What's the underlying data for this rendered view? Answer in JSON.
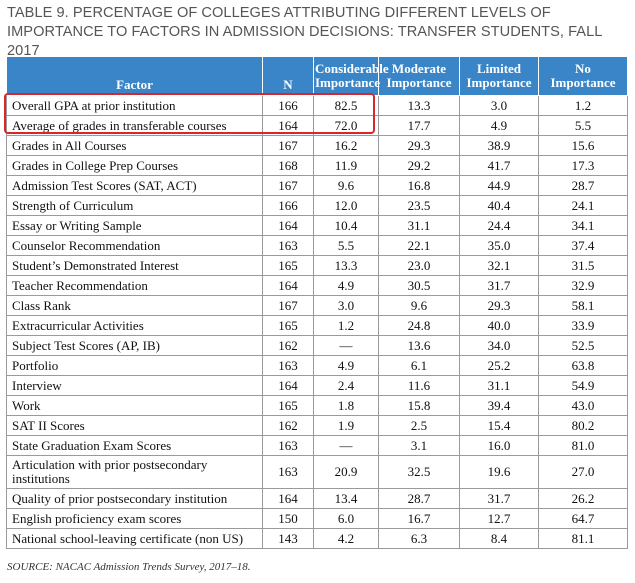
{
  "title": "TABLE 9. PERCENTAGE OF COLLEGES ATTRIBUTING DIFFERENT LEVELS OF IMPORTANCE TO FACTORS IN ADMISSION DECISIONS: TRANSFER STUDENTS, FALL 2017",
  "headers": {
    "factor": "Factor",
    "n": "N",
    "considerable_1": "Considerable",
    "considerable_2": "Importance",
    "moderate_1": "Moderate",
    "moderate_2": "Importance",
    "limited_1": "Limited",
    "limited_2": "Importance",
    "no_1": "No",
    "no_2": "Importance"
  },
  "rows": [
    {
      "factor": "Overall GPA at prior institution",
      "n": "166",
      "considerable": "82.5",
      "moderate": "13.3",
      "limited": "3.0",
      "no": "1.2"
    },
    {
      "factor": "Average of grades in transferable courses",
      "n": "164",
      "considerable": "72.0",
      "moderate": "17.7",
      "limited": "4.9",
      "no": "5.5"
    },
    {
      "factor": "Grades in All Courses",
      "n": "167",
      "considerable": "16.2",
      "moderate": "29.3",
      "limited": "38.9",
      "no": "15.6"
    },
    {
      "factor": "Grades in College Prep Courses",
      "n": "168",
      "considerable": "11.9",
      "moderate": "29.2",
      "limited": "41.7",
      "no": "17.3"
    },
    {
      "factor": "Admission Test Scores (SAT, ACT)",
      "n": "167",
      "considerable": "9.6",
      "moderate": "16.8",
      "limited": "44.9",
      "no": "28.7"
    },
    {
      "factor": "Strength of Curriculum",
      "n": "166",
      "considerable": "12.0",
      "moderate": "23.5",
      "limited": "40.4",
      "no": "24.1"
    },
    {
      "factor": "Essay or Writing Sample",
      "n": "164",
      "considerable": "10.4",
      "moderate": "31.1",
      "limited": "24.4",
      "no": "34.1"
    },
    {
      "factor": "Counselor Recommendation",
      "n": "163",
      "considerable": "5.5",
      "moderate": "22.1",
      "limited": "35.0",
      "no": "37.4"
    },
    {
      "factor": "Student’s Demonstrated Interest",
      "n": "165",
      "considerable": "13.3",
      "moderate": "23.0",
      "limited": "32.1",
      "no": "31.5"
    },
    {
      "factor": "Teacher Recommendation",
      "n": "164",
      "considerable": "4.9",
      "moderate": "30.5",
      "limited": "31.7",
      "no": "32.9"
    },
    {
      "factor": "Class Rank",
      "n": "167",
      "considerable": "3.0",
      "moderate": "9.6",
      "limited": "29.3",
      "no": "58.1"
    },
    {
      "factor": "Extracurricular Activities",
      "n": "165",
      "considerable": "1.2",
      "moderate": "24.8",
      "limited": "40.0",
      "no": "33.9"
    },
    {
      "factor": "Subject Test Scores (AP, IB)",
      "n": "162",
      "considerable": "—",
      "moderate": "13.6",
      "limited": "34.0",
      "no": "52.5"
    },
    {
      "factor": "Portfolio",
      "n": "163",
      "considerable": "4.9",
      "moderate": "6.1",
      "limited": "25.2",
      "no": "63.8"
    },
    {
      "factor": "Interview",
      "n": "164",
      "considerable": "2.4",
      "moderate": "11.6",
      "limited": "31.1",
      "no": "54.9"
    },
    {
      "factor": "Work",
      "n": "165",
      "considerable": "1.8",
      "moderate": "15.8",
      "limited": "39.4",
      "no": "43.0"
    },
    {
      "factor": "SAT II Scores",
      "n": "162",
      "considerable": "1.9",
      "moderate": "2.5",
      "limited": "15.4",
      "no": "80.2"
    },
    {
      "factor": "State Graduation Exam Scores",
      "n": "163",
      "considerable": "—",
      "moderate": "3.1",
      "limited": "16.0",
      "no": "81.0"
    },
    {
      "factor": "Articulation with prior postsecondary institutions",
      "n": "163",
      "considerable": "20.9",
      "moderate": "32.5",
      "limited": "19.6",
      "no": "27.0"
    },
    {
      "factor": "Quality of prior postsecondary institution",
      "n": "164",
      "considerable": "13.4",
      "moderate": "28.7",
      "limited": "31.7",
      "no": "26.2"
    },
    {
      "factor": "English proficiency exam scores",
      "n": "150",
      "considerable": "6.0",
      "moderate": "16.7",
      "limited": "12.7",
      "no": "64.7"
    },
    {
      "factor": "National school-leaving certificate (non US)",
      "n": "143",
      "considerable": "4.2",
      "moderate": "6.3",
      "limited": "8.4",
      "no": "81.1"
    }
  ],
  "source": "SOURCE: NACAC Admission Trends Survey, 2017–18.",
  "colors": {
    "header_bg": "#3a85c8",
    "highlight": "#d9262c",
    "title": "#555555"
  }
}
